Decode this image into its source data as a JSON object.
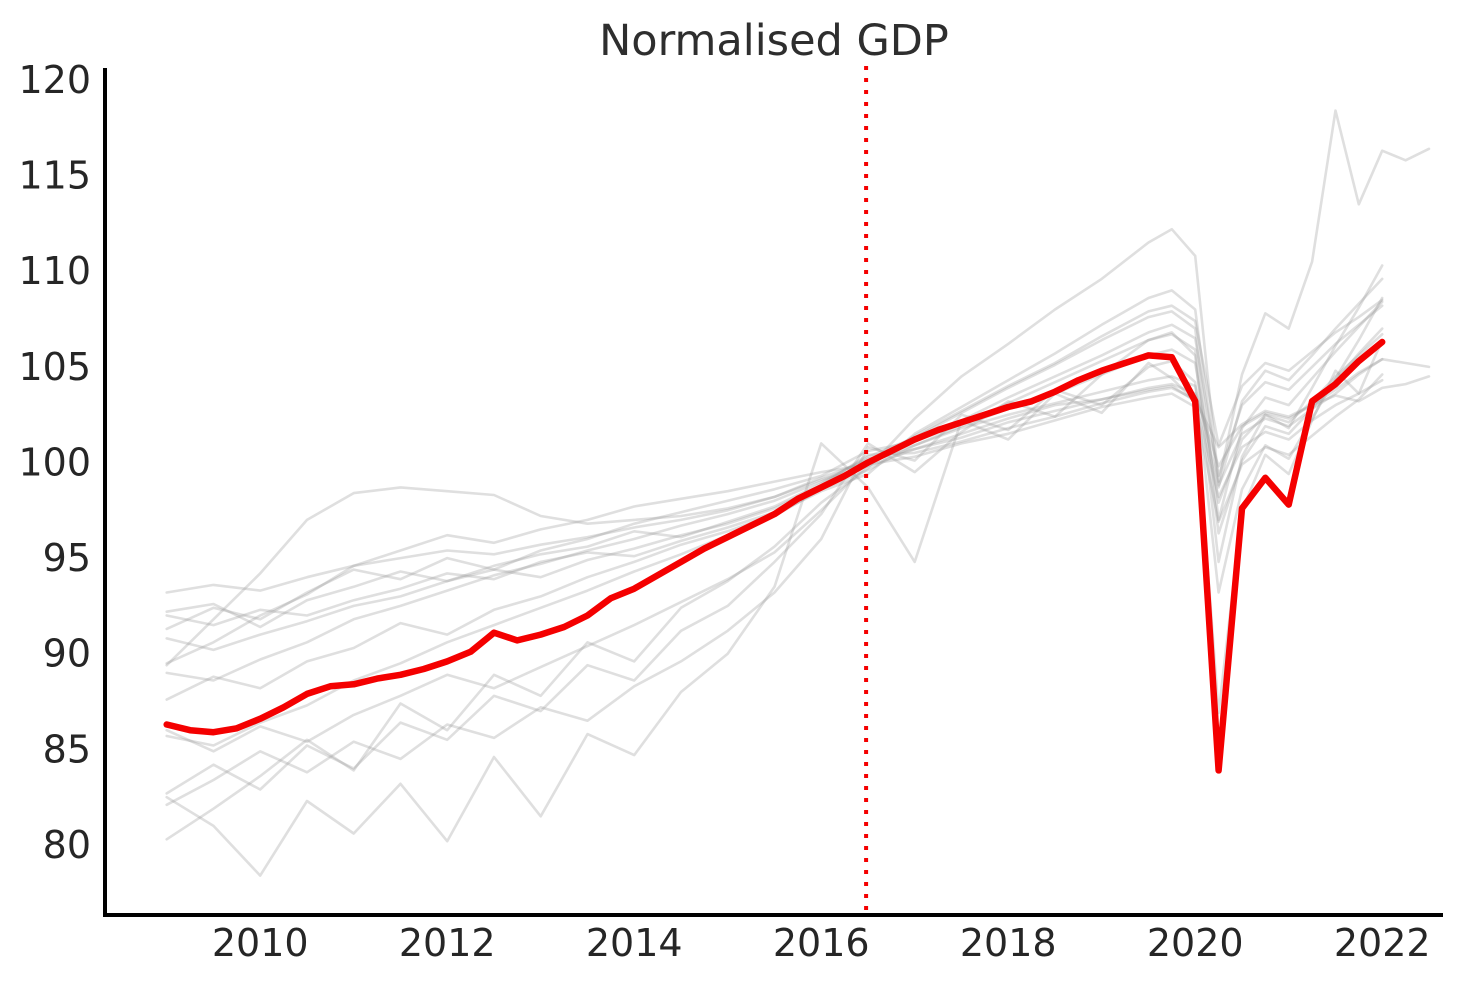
{
  "title": "Normalised GDP",
  "colors": {
    "highlight_line": "#f40000",
    "reference_vline": "#f40000",
    "background_line": "#9c9c9c",
    "axis_spine": "#000000",
    "tick_label": "#262626",
    "title_text": "#2e2e2e",
    "background": "#ffffff"
  },
  "chart_data": {
    "type": "line",
    "title": "Normalised GDP",
    "xlabel": "",
    "ylabel": "",
    "grid": false,
    "legend": "none",
    "xlim": [
      2008.34,
      2022.65
    ],
    "ylim": [
      76.34,
      120.94
    ],
    "x_ticks": [
      2010,
      2012,
      2014,
      2016,
      2018,
      2020,
      2022
    ],
    "y_ticks": [
      80,
      85,
      90,
      95,
      100,
      105,
      110,
      115,
      120
    ],
    "vline": {
      "x": 2016.48,
      "style": "dotted",
      "color": "#f40000"
    },
    "highlight_series": {
      "name": "highlighted-gdp",
      "color": "#f40000",
      "x": [
        2009.0,
        2009.25,
        2009.5,
        2009.75,
        2010.0,
        2010.25,
        2010.5,
        2010.75,
        2011.0,
        2011.25,
        2011.5,
        2011.75,
        2012.0,
        2012.25,
        2012.5,
        2012.75,
        2013.0,
        2013.25,
        2013.5,
        2013.75,
        2014.0,
        2014.25,
        2014.5,
        2014.75,
        2015.0,
        2015.25,
        2015.5,
        2015.75,
        2016.0,
        2016.25,
        2016.5,
        2016.75,
        2017.0,
        2017.25,
        2017.5,
        2017.75,
        2018.0,
        2018.25,
        2018.5,
        2018.75,
        2019.0,
        2019.25,
        2019.5,
        2019.75,
        2020.0,
        2020.25,
        2020.5,
        2020.75,
        2021.0,
        2021.25,
        2021.5,
        2021.75,
        2022.0
      ],
      "values": [
        86.3,
        86.0,
        85.9,
        86.1,
        86.6,
        87.2,
        87.9,
        88.3,
        88.4,
        88.7,
        88.9,
        89.2,
        89.6,
        90.1,
        91.1,
        90.7,
        91.0,
        91.4,
        92.0,
        92.9,
        93.4,
        94.1,
        94.8,
        95.5,
        96.1,
        96.7,
        97.3,
        98.1,
        98.7,
        99.3,
        100.0,
        100.6,
        101.2,
        101.7,
        102.1,
        102.5,
        102.9,
        103.2,
        103.7,
        104.3,
        104.8,
        105.2,
        105.6,
        105.5,
        103.2,
        83.9,
        97.6,
        99.2,
        97.8,
        103.2,
        104.1,
        105.3,
        106.3
      ]
    },
    "background_x": [
      2009,
      2009.5,
      2010,
      2010.5,
      2011,
      2011.5,
      2012,
      2012.5,
      2013,
      2013.5,
      2014,
      2014.5,
      2015,
      2015.5,
      2016,
      2016.5,
      2017,
      2017.5,
      2018,
      2018.5,
      2019,
      2019.5,
      2019.75,
      2020,
      2020.25,
      2020.5,
      2020.75,
      2021,
      2021.25,
      2021.5,
      2021.75,
      2022
    ],
    "background_series": [
      {
        "name": "g1",
        "values": [
          93.2,
          93.6,
          93.3,
          94.0,
          94.6,
          95.0,
          95.4,
          95.2,
          95.7,
          96.1,
          96.6,
          97.0,
          97.5,
          98.2,
          99.2,
          100.1,
          100.9,
          101.8,
          102.5,
          103.1,
          103.7,
          104.3,
          104.5,
          104.0,
          98.8,
          101.5,
          102.3,
          101.9,
          102.8,
          103.6,
          104.6,
          105.4
        ]
      },
      {
        "name": "g2",
        "values": [
          89.4,
          91.8,
          94.2,
          97.0,
          98.4,
          98.7,
          98.5,
          98.3,
          97.2,
          96.8,
          97.0,
          97.2,
          97.6,
          98.2,
          99.1,
          99.8,
          100.7,
          101.5,
          102.3,
          103.0,
          103.3,
          103.8,
          104.0,
          103.2,
          98.2,
          100.8,
          101.6,
          101.2,
          102.2,
          103.0,
          103.6,
          104.3
        ]
      },
      {
        "name": "g3",
        "values": [
          92.2,
          92.6,
          91.4,
          92.8,
          93.5,
          94.3,
          93.8,
          94.6,
          95.2,
          95.6,
          96.4,
          96.1,
          96.9,
          97.7,
          98.9,
          100.3,
          101.3,
          102.2,
          103.4,
          104.5,
          105.6,
          106.8,
          107.2,
          106.5,
          99.3,
          103.0,
          104.2,
          103.8,
          105.0,
          106.2,
          107.2,
          108.2
        ]
      },
      {
        "name": "g4",
        "values": [
          92.0,
          91.5,
          92.3,
          92.0,
          92.8,
          93.4,
          94.2,
          93.9,
          94.8,
          95.3,
          95.1,
          95.9,
          96.6,
          97.4,
          98.6,
          99.6,
          100.9,
          101.9,
          102.8,
          103.6,
          104.6,
          105.6,
          105.9,
          105.2,
          97.9,
          101.2,
          102.5,
          102.1,
          103.2,
          104.5,
          105.6,
          106.7
        ]
      },
      {
        "name": "g5",
        "values": [
          91.3,
          92.4,
          91.8,
          93.2,
          94.4,
          93.9,
          95.0,
          94.4,
          95.4,
          96.0,
          96.8,
          97.4,
          98.0,
          98.6,
          99.3,
          100.6,
          101.1,
          102.0,
          103.1,
          104.2,
          105.3,
          106.4,
          106.7,
          105.9,
          96.3,
          100.1,
          101.9,
          101.5,
          102.8,
          104.3,
          105.7,
          107.0
        ]
      },
      {
        "name": "g6",
        "values": [
          89.5,
          90.6,
          92.0,
          93.1,
          94.6,
          95.4,
          96.2,
          95.8,
          96.5,
          97.0,
          97.7,
          98.1,
          98.5,
          99.0,
          99.5,
          99.9,
          101.4,
          102.7,
          104.0,
          105.2,
          106.6,
          107.9,
          108.2,
          107.4,
          100.9,
          104.0,
          105.2,
          104.8,
          105.8,
          106.8,
          107.6,
          108.5
        ]
      },
      {
        "name": "g7",
        "x": [
          2009,
          2009.5,
          2010,
          2010.5,
          2011,
          2011.5,
          2012,
          2012.5,
          2013,
          2013.5,
          2014,
          2014.5,
          2015,
          2015.5,
          2016,
          2016.5,
          2017,
          2017.5,
          2018,
          2018.5,
          2019,
          2019.5,
          2019.75,
          2020,
          2020.25,
          2020.5,
          2020.75,
          2021,
          2021.25,
          2021.5,
          2021.75,
          2022,
          2022.25,
          2022.5
        ],
        "values": [
          89.0,
          88.6,
          89.7,
          90.6,
          91.8,
          92.5,
          93.3,
          94.1,
          94.7,
          95.4,
          96.0,
          96.7,
          97.3,
          98.0,
          99.0,
          100.2,
          100.7,
          101.3,
          102.1,
          102.7,
          103.3,
          103.9,
          104.1,
          103.6,
          99.8,
          101.9,
          102.6,
          102.3,
          103.0,
          103.8,
          104.7,
          105.4,
          105.2,
          105.0
        ]
      },
      {
        "name": "g8",
        "values": [
          87.6,
          88.8,
          88.2,
          89.6,
          90.3,
          91.6,
          91.0,
          92.3,
          93.0,
          94.0,
          94.8,
          95.7,
          96.4,
          97.3,
          98.5,
          99.4,
          101.5,
          102.9,
          104.3,
          105.7,
          107.2,
          108.6,
          109.0,
          108.0,
          98.7,
          103.2,
          104.8,
          104.3,
          105.6,
          107.0,
          108.3,
          109.6
        ]
      },
      {
        "name": "g9",
        "values": [
          85.7,
          85.2,
          86.4,
          87.3,
          88.6,
          89.5,
          90.6,
          91.5,
          92.4,
          93.3,
          94.3,
          95.2,
          96.2,
          97.2,
          98.6,
          100.0,
          101.3,
          102.6,
          103.9,
          105.1,
          106.4,
          107.6,
          107.9,
          107.0,
          97.0,
          101.8,
          103.4,
          103.0,
          104.4,
          105.8,
          107.1,
          108.4
        ]
      },
      {
        "name": "g10",
        "values": [
          82.7,
          84.2,
          82.9,
          85.2,
          84.0,
          86.4,
          85.5,
          87.8,
          87.0,
          89.4,
          88.6,
          91.2,
          92.5,
          94.8,
          97.3,
          101.0,
          99.5,
          101.6,
          103.2,
          102.4,
          104.6,
          106.4,
          106.8,
          105.6,
          94.8,
          100.3,
          102.5,
          101.8,
          103.9,
          106.1,
          108.1,
          110.3
        ]
      },
      {
        "name": "g11",
        "values": [
          82.5,
          81.0,
          78.4,
          82.3,
          80.6,
          83.2,
          80.2,
          84.6,
          81.5,
          85.8,
          84.7,
          88.0,
          90.0,
          93.5,
          101.0,
          98.7,
          94.8,
          102.2,
          101.2,
          103.6,
          102.6,
          105.2,
          104.4,
          103.2,
          86.9,
          97.5,
          100.4,
          99.4,
          102.2,
          104.8,
          103.6,
          106.4
        ]
      },
      {
        "name": "g12",
        "values": [
          82.1,
          83.4,
          84.9,
          83.8,
          85.4,
          84.5,
          86.3,
          85.6,
          87.2,
          86.5,
          88.3,
          89.6,
          91.2,
          93.2,
          96.0,
          100.8,
          100.1,
          102.5,
          101.7,
          103.8,
          103.0,
          105.0,
          105.3,
          104.2,
          93.2,
          98.6,
          100.9,
          100.2,
          102.3,
          104.4,
          106.4,
          108.6
        ]
      },
      {
        "name": "g13",
        "x": [
          2009,
          2009.5,
          2010,
          2010.5,
          2011,
          2011.5,
          2012,
          2012.5,
          2013,
          2013.5,
          2014,
          2014.5,
          2015,
          2015.5,
          2016,
          2016.5,
          2017,
          2017.5,
          2018,
          2018.5,
          2019,
          2019.5,
          2019.75,
          2020,
          2020.25,
          2020.5,
          2020.75,
          2021,
          2021.25,
          2021.5,
          2021.75,
          2022,
          2022.25,
          2022.5
        ],
        "values": [
          80.3,
          81.9,
          83.6,
          85.5,
          83.9,
          87.4,
          86.0,
          88.9,
          87.8,
          90.6,
          89.6,
          92.4,
          93.8,
          95.6,
          97.9,
          99.7,
          102.3,
          104.5,
          106.2,
          108.0,
          109.6,
          111.5,
          112.2,
          110.8,
          99.0,
          104.6,
          107.8,
          107.0,
          110.5,
          118.4,
          113.5,
          116.3,
          115.8,
          116.4
        ]
      },
      {
        "name": "g14",
        "x": [
          2009,
          2009.5,
          2010,
          2010.5,
          2011,
          2011.5,
          2012,
          2012.5,
          2013,
          2013.5,
          2014,
          2014.5,
          2015,
          2015.5,
          2016,
          2016.5,
          2017,
          2017.5,
          2018,
          2018.5,
          2019,
          2019.5,
          2019.75,
          2020,
          2020.25,
          2020.5,
          2020.75,
          2021,
          2021.25,
          2021.5,
          2021.75,
          2022,
          2022.25,
          2022.5
        ],
        "values": [
          90.8,
          90.2,
          91.0,
          91.7,
          92.5,
          93.0,
          93.8,
          94.4,
          94.0,
          94.9,
          95.5,
          96.2,
          96.8,
          97.6,
          98.8,
          100.4,
          100.5,
          101.1,
          101.8,
          102.4,
          103.1,
          103.7,
          103.9,
          103.3,
          100.8,
          102.0,
          102.7,
          102.4,
          103.0,
          103.5,
          103.2,
          103.9,
          104.1,
          104.5
        ]
      },
      {
        "name": "g15",
        "values": [
          86.0,
          84.9,
          86.2,
          85.4,
          86.8,
          87.8,
          88.9,
          88.2,
          89.3,
          90.4,
          91.5,
          92.7,
          93.9,
          95.3,
          97.5,
          99.9,
          100.3,
          101.0,
          101.5,
          102.2,
          102.9,
          103.4,
          103.6,
          102.9,
          96.9,
          99.9,
          100.8,
          100.4,
          101.4,
          102.4,
          103.3,
          104.6
        ]
      }
    ]
  }
}
